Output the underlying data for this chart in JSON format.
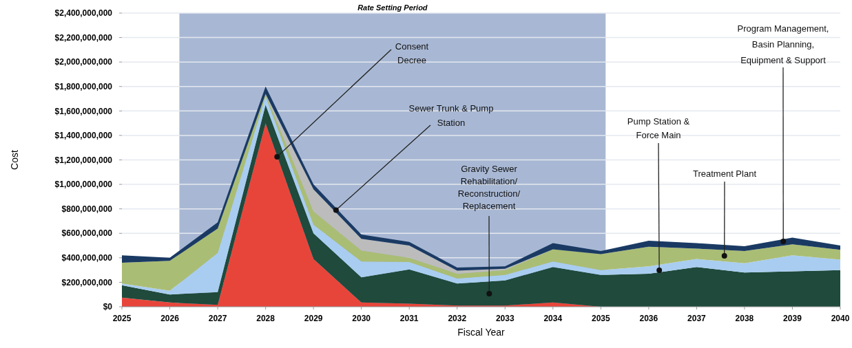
{
  "chart_data": {
    "type": "area",
    "stacked": true,
    "xlabel": "Fiscal Year",
    "ylabel": "Cost",
    "x": [
      2025,
      2026,
      2027,
      2028,
      2029,
      2030,
      2031,
      2032,
      2033,
      2034,
      2035,
      2036,
      2037,
      2038,
      2039,
      2040
    ],
    "xlim": [
      2025,
      2040
    ],
    "xticks": [
      2025,
      2026,
      2027,
      2028,
      2029,
      2030,
      2031,
      2032,
      2033,
      2034,
      2035,
      2036,
      2037,
      2038,
      2039,
      2040
    ],
    "ylim": [
      0,
      2400000000
    ],
    "yticks": [
      {
        "value": 0,
        "label": "$0"
      },
      {
        "value": 200000000,
        "label": "$200,000,000"
      },
      {
        "value": 400000000,
        "label": "$400,000,000"
      },
      {
        "value": 600000000,
        "label": "$600,000,000"
      },
      {
        "value": 800000000,
        "label": "$800,000,000"
      },
      {
        "value": 1000000000,
        "label": "$1,000,000,000"
      },
      {
        "value": 1200000000,
        "label": "$1,200,000,000"
      },
      {
        "value": 1400000000,
        "label": "$1,400,000,000"
      },
      {
        "value": 1600000000,
        "label": "$1,600,000,000"
      },
      {
        "value": 1800000000,
        "label": "$1,800,000,000"
      },
      {
        "value": 2000000000,
        "label": "$2,000,000,000"
      },
      {
        "value": 2200000000,
        "label": "$2,200,000,000"
      },
      {
        "value": 2400000000,
        "label": "$2,400,000,000"
      }
    ],
    "grid": "y",
    "series": [
      {
        "color": "#e8453a",
        "values": [
          75000000,
          35000000,
          15000000,
          1500000000,
          390000000,
          35000000,
          25000000,
          10000000,
          10000000,
          35000000,
          0,
          0,
          0,
          0,
          0,
          0
        ]
      },
      {
        "color": "#1f4a3c",
        "values": [
          100000000,
          65000000,
          105000000,
          150000000,
          210000000,
          205000000,
          280000000,
          180000000,
          205000000,
          290000000,
          260000000,
          270000000,
          325000000,
          280000000,
          290000000,
          300000000
        ]
      },
      {
        "color": "#a9cdf0",
        "values": [
          15000000,
          30000000,
          320000000,
          70000000,
          70000000,
          130000000,
          60000000,
          40000000,
          45000000,
          45000000,
          40000000,
          60000000,
          65000000,
          75000000,
          130000000,
          85000000
        ]
      },
      {
        "color": "#aabd74",
        "values": [
          170000000,
          245000000,
          200000000,
          20000000,
          110000000,
          90000000,
          35000000,
          40000000,
          40000000,
          100000000,
          130000000,
          160000000,
          85000000,
          100000000,
          90000000,
          80000000
        ]
      },
      {
        "color": "#bcbcbc",
        "values": [
          0,
          0,
          0,
          0,
          180000000,
          95000000,
          100000000,
          25000000,
          10000000,
          0,
          0,
          0,
          0,
          0,
          0,
          0
        ]
      },
      {
        "color": "#1a3a63",
        "values": [
          60000000,
          25000000,
          50000000,
          60000000,
          40000000,
          35000000,
          30000000,
          25000000,
          20000000,
          50000000,
          25000000,
          50000000,
          45000000,
          40000000,
          55000000,
          35000000
        ]
      }
    ],
    "bands": [
      {
        "axis": "x",
        "from": 2026.2,
        "to": 2035.1,
        "label": "Rate Setting Period",
        "color": "#a8b8d4"
      }
    ],
    "annotations": [
      {
        "text": "Consent\nDecree",
        "x": 2028.24,
        "y": 1225000000
      },
      {
        "text": "Sewer Trunk & Pump\nStation",
        "x": 2029.47,
        "y": 790000000
      },
      {
        "text": "Gravity Sewer\nRehabilitation/\nReconstruction/\nReplacement",
        "x": 2032.67,
        "y": 107000000
      },
      {
        "text": "Pump Station &\nForce Main",
        "x": 2036.22,
        "y": 298000000
      },
      {
        "text": "Treatment Plant",
        "x": 2037.58,
        "y": 416000000
      },
      {
        "text": "Program Management,\nBasin Planning,\nEquipment & Support",
        "x": 2038.81,
        "y": 534000000
      }
    ]
  }
}
